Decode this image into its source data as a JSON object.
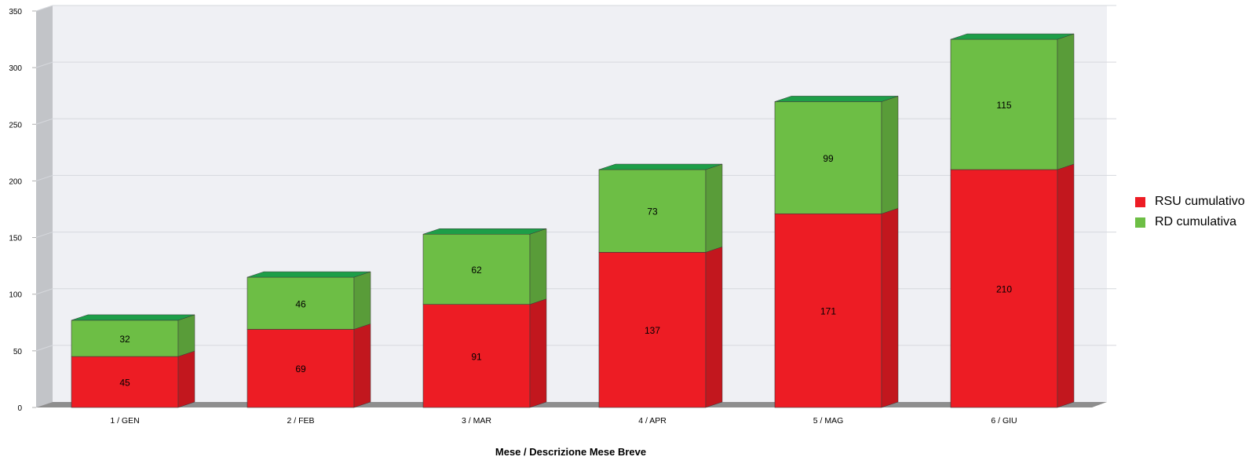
{
  "chart_data": {
    "type": "bar",
    "stacked": true,
    "three_d": true,
    "categories": [
      "1 / GEN",
      "2 / FEB",
      "3 / MAR",
      "4 / APR",
      "5 / MAG",
      "6 / GIU"
    ],
    "series": [
      {
        "name": "RSU cumulativo",
        "color": "#ED1C24",
        "values": [
          45,
          69,
          91,
          137,
          171,
          210
        ]
      },
      {
        "name": "RD cumulativa",
        "color": "#6DBE45",
        "values": [
          32,
          46,
          62,
          73,
          99,
          115
        ]
      }
    ],
    "xlabel": "Mese / Descrizione Mese Breve",
    "ylabel": "",
    "ylim": [
      0,
      350
    ],
    "yticks": [
      0,
      50,
      100,
      150,
      200,
      250,
      300,
      350
    ],
    "grid": true,
    "legend_position": "right"
  }
}
